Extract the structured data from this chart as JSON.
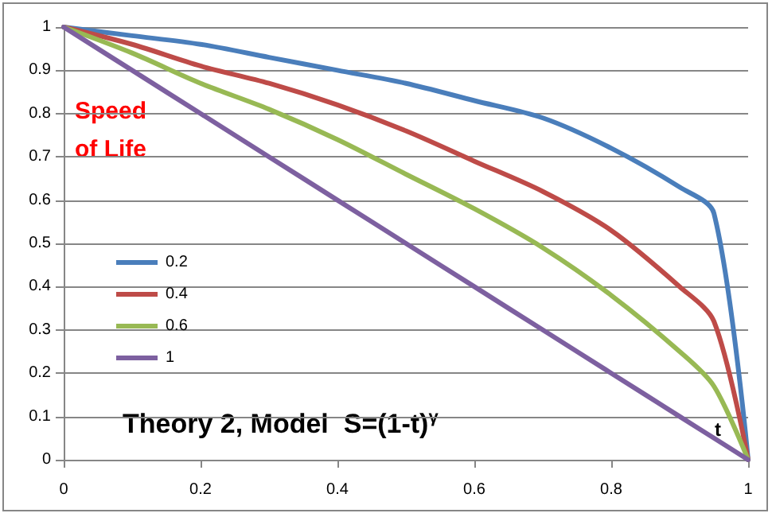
{
  "chart_data": {
    "type": "line",
    "title": "Theory 2, Model  S=(1-t)$^{γ}$",
    "ylabel": "Speed of Life",
    "xlabel": "t",
    "x": [
      0,
      0.1,
      0.2,
      0.3,
      0.4,
      0.5,
      0.6,
      0.7,
      0.8,
      0.9,
      0.95,
      1
    ],
    "series": [
      {
        "name": "0.2",
        "color": "#4a7ebb",
        "values": [
          1,
          0.98,
          0.96,
          0.93,
          0.9,
          0.87,
          0.83,
          0.79,
          0.72,
          0.63,
          0.57,
          0
        ]
      },
      {
        "name": "0.4",
        "color": "#be4b48",
        "values": [
          1,
          0.96,
          0.91,
          0.87,
          0.82,
          0.76,
          0.69,
          0.62,
          0.53,
          0.4,
          0.32,
          0
        ]
      },
      {
        "name": "0.6",
        "color": "#98b954",
        "values": [
          1,
          0.94,
          0.87,
          0.81,
          0.74,
          0.66,
          0.58,
          0.49,
          0.38,
          0.25,
          0.17,
          0
        ]
      },
      {
        "name": "1",
        "color": "#7d60a0",
        "values": [
          1,
          0.9,
          0.8,
          0.7,
          0.6,
          0.5,
          0.4,
          0.3,
          0.2,
          0.1,
          0.05,
          0
        ]
      }
    ],
    "xlim": [
      0,
      1
    ],
    "xticks": [
      0,
      0.2,
      0.4,
      0.6,
      0.8,
      1
    ],
    "ylim": [
      0,
      1
    ],
    "yticks": [
      0,
      0.1,
      0.2,
      0.3,
      0.4,
      0.5,
      0.6,
      0.7,
      0.8,
      0.9,
      1
    ],
    "grid": "y",
    "legend": "left",
    "marker": "none",
    "line_style": "solid"
  }
}
